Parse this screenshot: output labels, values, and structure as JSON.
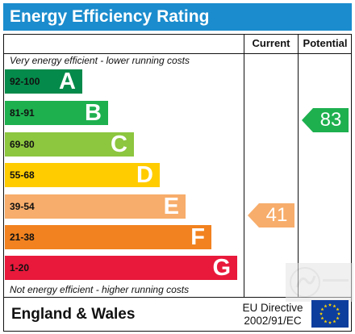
{
  "title": "Energy Efficiency Rating",
  "columns": {
    "current": "Current",
    "potential": "Potential"
  },
  "top_caption": "Very energy efficient - lower running costs",
  "bottom_caption": "Not energy efficient - higher running costs",
  "bands": [
    {
      "range": "92-100",
      "letter": "A",
      "color": "#048a4a",
      "range_color": "#111111"
    },
    {
      "range": "81-91",
      "letter": "B",
      "color": "#1eb04f",
      "range_color": "#111111"
    },
    {
      "range": "69-80",
      "letter": "C",
      "color": "#8dc63f",
      "range_color": "#111111"
    },
    {
      "range": "55-68",
      "letter": "D",
      "color": "#ffcc00",
      "range_color": "#111111"
    },
    {
      "range": "39-54",
      "letter": "E",
      "color": "#f7ad6b",
      "range_color": "#111111"
    },
    {
      "range": "21-38",
      "letter": "F",
      "color": "#f2821f",
      "range_color": "#111111"
    },
    {
      "range": "1-20",
      "letter": "G",
      "color": "#e8193b",
      "range_color": "#111111"
    }
  ],
  "current": {
    "value": "41",
    "band": "E",
    "color": "#f7ad6b"
  },
  "potential": {
    "value": "83",
    "band": "B",
    "color": "#1eb04f"
  },
  "footer": {
    "region": "England & Wales",
    "directive_line1": "EU Directive",
    "directive_line2": "2002/91/EC"
  },
  "flag_icon": "eu-flag-icon",
  "watermark_icon": "agency-logo-watermark"
}
